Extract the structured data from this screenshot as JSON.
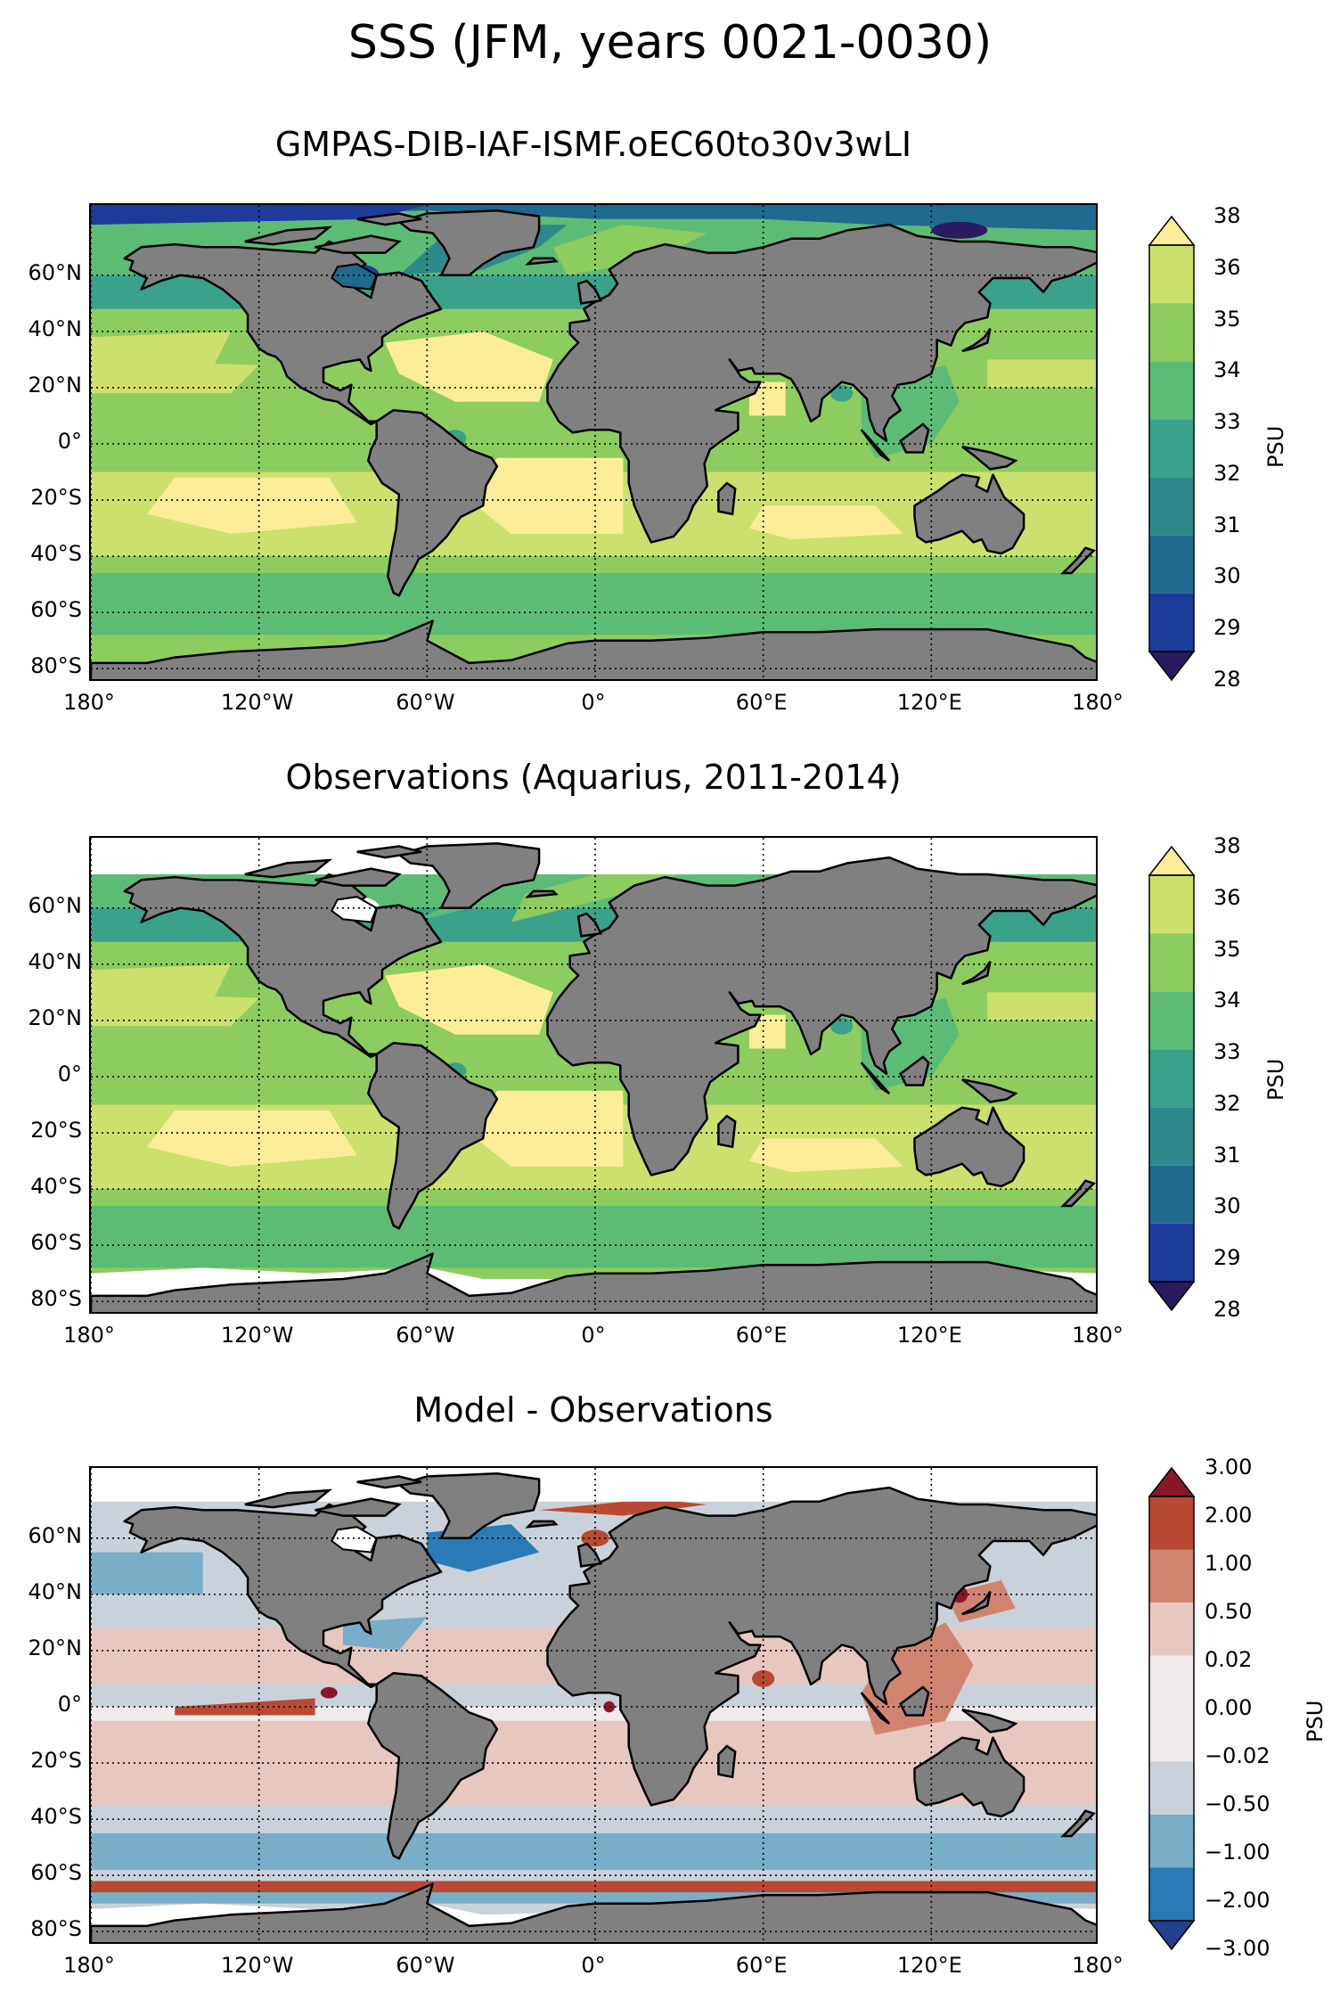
{
  "title": "SSS (JFM, years 0021-0030)",
  "panels": [
    {
      "title": "GMPAS-DIB-IAF-ISMF.oEC60to30v3wLI",
      "colorbar": {
        "label": "PSU",
        "levels": [
          "28",
          "29",
          "30",
          "31",
          "32",
          "33",
          "34",
          "35",
          "36",
          "38"
        ],
        "colors": [
          "#2a1a5e",
          "#1d3c9a",
          "#1f6a8e",
          "#2e8a8a",
          "#3aa28a",
          "#5cbc76",
          "#8dcc5e",
          "#cce06e",
          "#fbed98"
        ]
      }
    },
    {
      "title": "Observations (Aquarius, 2011-2014)",
      "colorbar": {
        "label": "PSU",
        "levels": [
          "28",
          "29",
          "30",
          "31",
          "32",
          "33",
          "34",
          "35",
          "36",
          "38"
        ],
        "colors": [
          "#2a1a5e",
          "#1d3c9a",
          "#1f6a8e",
          "#2e8a8a",
          "#3aa28a",
          "#5cbc76",
          "#8dcc5e",
          "#cce06e",
          "#fbed98"
        ]
      }
    },
    {
      "title": "Model - Observations",
      "colorbar": {
        "label": "PSU",
        "levels": [
          "−3.00",
          "−2.00",
          "−1.00",
          "−0.50",
          "−0.02",
          "0.00",
          "0.02",
          "0.50",
          "1.00",
          "2.00",
          "3.00"
        ],
        "colors": [
          "#24408e",
          "#2a7ab8",
          "#79aec8",
          "#c9d2da",
          "#f0eaea",
          "#f0eaea",
          "#e6c8c0",
          "#d08470",
          "#b84a33",
          "#8a1726"
        ]
      }
    }
  ],
  "axes": {
    "lat_ticks": [
      "60°N",
      "40°N",
      "20°N",
      "0°",
      "20°S",
      "40°S",
      "60°S",
      "80°S"
    ],
    "lat_values": [
      60,
      40,
      20,
      0,
      -20,
      -40,
      -60,
      -80
    ],
    "lon_ticks": [
      "180°",
      "120°W",
      "60°W",
      "0°",
      "60°E",
      "120°E",
      "180°"
    ],
    "lon_values": [
      -180,
      -120,
      -60,
      0,
      60,
      120,
      180
    ],
    "lat_range": [
      -85,
      85
    ],
    "lon_range": [
      -180,
      180
    ],
    "land_color": "#808080"
  }
}
